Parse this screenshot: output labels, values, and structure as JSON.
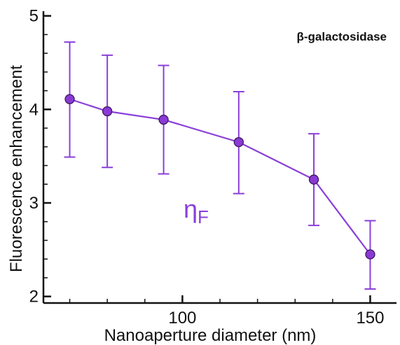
{
  "chart_data": {
    "type": "line",
    "xlabel": "Nanoaperture diameter (nm)",
    "ylabel": "Fluorescence enhancement",
    "xlim": [
      63,
      157
    ],
    "ylim": [
      1.93,
      5.05
    ],
    "x_ticks_major": [
      100,
      150
    ],
    "x_ticks_minor": [
      50,
      60,
      70,
      80,
      90,
      110,
      120,
      130,
      140
    ],
    "y_ticks_major": [
      2,
      3,
      4,
      5
    ],
    "y_ticks_minor": [
      2.2,
      2.4,
      2.6,
      2.8,
      3.2,
      3.4,
      3.6,
      3.8,
      4.2,
      4.4,
      4.6,
      4.8
    ],
    "annotation": "β-galactosidase",
    "series_label": {
      "main": "η",
      "sub": "F"
    },
    "color": "#8b3fd9",
    "marker_fill": "#8a3ad4",
    "marker_edge": "#3d1560",
    "series": [
      {
        "x": [
          70,
          80,
          95,
          115,
          135,
          150
        ],
        "y": [
          4.11,
          3.98,
          3.89,
          3.65,
          3.25,
          2.45
        ],
        "yerr_low": [
          3.49,
          3.38,
          3.31,
          3.1,
          2.76,
          2.08
        ],
        "yerr_high": [
          4.72,
          4.58,
          4.47,
          4.19,
          3.74,
          2.81
        ]
      }
    ],
    "grid": false
  }
}
